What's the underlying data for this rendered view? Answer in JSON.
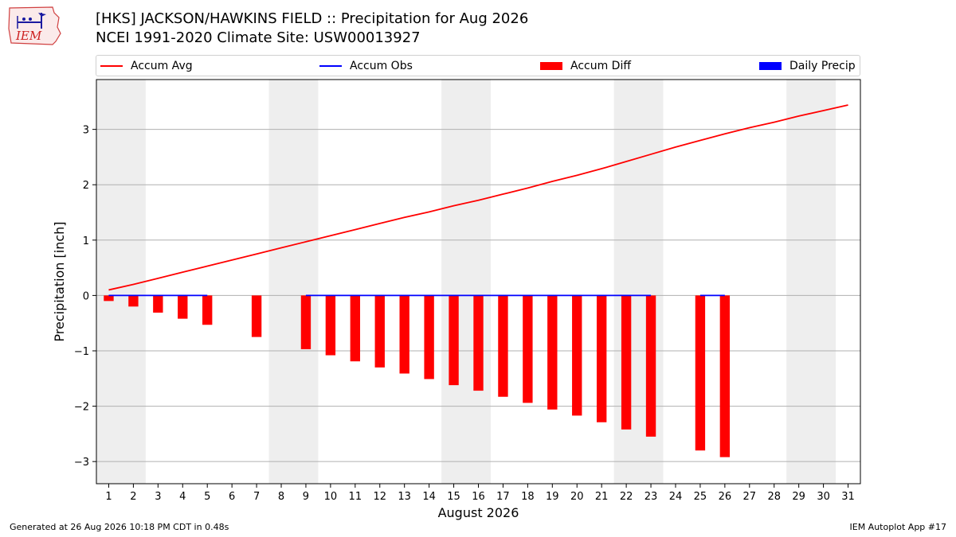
{
  "header": {
    "title_line1": "[HKS] JACKSON/HAWKINS FIELD :: Precipitation for Aug 2026",
    "title_line2": "NCEI 1991-2020 Climate Site: USW00013927"
  },
  "logo": {
    "text": "IEM"
  },
  "legend": {
    "accum_avg": "Accum Avg",
    "accum_obs": "Accum Obs",
    "accum_diff": "Accum Diff",
    "daily_precip": "Daily Precip"
  },
  "footer": {
    "left": "Generated at 26 Aug 2026 10:18 PM CDT in 0.48s",
    "right": "IEM Autoplot App #17"
  },
  "colors": {
    "accum_avg": "#ff0000",
    "accum_obs": "#0000ff",
    "accum_diff": "#ff0000",
    "daily_precip": "#0000ff",
    "weekend_shade": "#eeeeee",
    "grid": "#b0b0b0"
  },
  "chart_data": {
    "type": "bar",
    "xlabel": "August 2026",
    "ylabel": "Precipitation [inch]",
    "x": [
      1,
      2,
      3,
      4,
      5,
      6,
      7,
      8,
      9,
      10,
      11,
      12,
      13,
      14,
      15,
      16,
      17,
      18,
      19,
      20,
      21,
      22,
      23,
      24,
      25,
      26,
      27,
      28,
      29,
      30,
      31
    ],
    "xlim": [
      0.5,
      31.5
    ],
    "ylim": [
      -3.4,
      3.9
    ],
    "yticks": [
      -3,
      -2,
      -1,
      0,
      1,
      2,
      3
    ],
    "ytick_labels": [
      "−3",
      "−2",
      "−1",
      "0",
      "1",
      "2",
      "3"
    ],
    "grid": "horizontal",
    "legend_position": "top",
    "weekend_shading_days": [
      [
        1,
        2
      ],
      [
        8,
        9
      ],
      [
        15,
        16
      ],
      [
        22,
        23
      ],
      [
        29,
        30
      ]
    ],
    "series": [
      {
        "name": "Accum Avg",
        "type": "line",
        "x": [
          1,
          2,
          3,
          4,
          5,
          6,
          7,
          8,
          9,
          10,
          11,
          12,
          13,
          14,
          15,
          16,
          17,
          18,
          19,
          20,
          21,
          22,
          23,
          24,
          25,
          26,
          27,
          28,
          29,
          30,
          31
        ],
        "values": [
          0.1,
          0.2,
          0.31,
          0.42,
          0.53,
          0.64,
          0.75,
          0.86,
          0.97,
          1.08,
          1.19,
          1.3,
          1.41,
          1.51,
          1.62,
          1.72,
          1.83,
          1.94,
          2.06,
          2.17,
          2.29,
          2.42,
          2.55,
          2.68,
          2.8,
          2.92,
          3.03,
          3.13,
          3.24,
          3.34,
          3.44
        ]
      },
      {
        "name": "Accum Obs",
        "type": "line",
        "segments": [
          {
            "x": [
              1,
              2,
              3,
              4,
              5
            ],
            "values": [
              0,
              0,
              0,
              0,
              0
            ]
          },
          {
            "x": [
              9,
              10,
              11,
              12,
              13,
              14,
              15,
              16,
              17,
              18,
              19,
              20,
              21,
              22,
              23
            ],
            "values": [
              0,
              0,
              0,
              0,
              0,
              0,
              0,
              0,
              0,
              0,
              0,
              0,
              0,
              0,
              0
            ]
          },
          {
            "x": [
              25,
              26
            ],
            "values": [
              0,
              0
            ]
          }
        ]
      },
      {
        "name": "Accum Diff",
        "type": "bar",
        "x": [
          1,
          2,
          3,
          4,
          5,
          7,
          9,
          10,
          11,
          12,
          13,
          14,
          15,
          16,
          17,
          18,
          19,
          20,
          21,
          22,
          23,
          25,
          26
        ],
        "values": [
          -0.1,
          -0.2,
          -0.31,
          -0.42,
          -0.53,
          -0.75,
          -0.97,
          -1.08,
          -1.19,
          -1.3,
          -1.41,
          -1.51,
          -1.62,
          -1.72,
          -1.83,
          -1.94,
          -2.06,
          -2.17,
          -2.29,
          -2.42,
          -2.55,
          -2.8,
          -2.92
        ]
      },
      {
        "name": "Daily Precip",
        "type": "bar",
        "x": [],
        "values": []
      }
    ]
  }
}
